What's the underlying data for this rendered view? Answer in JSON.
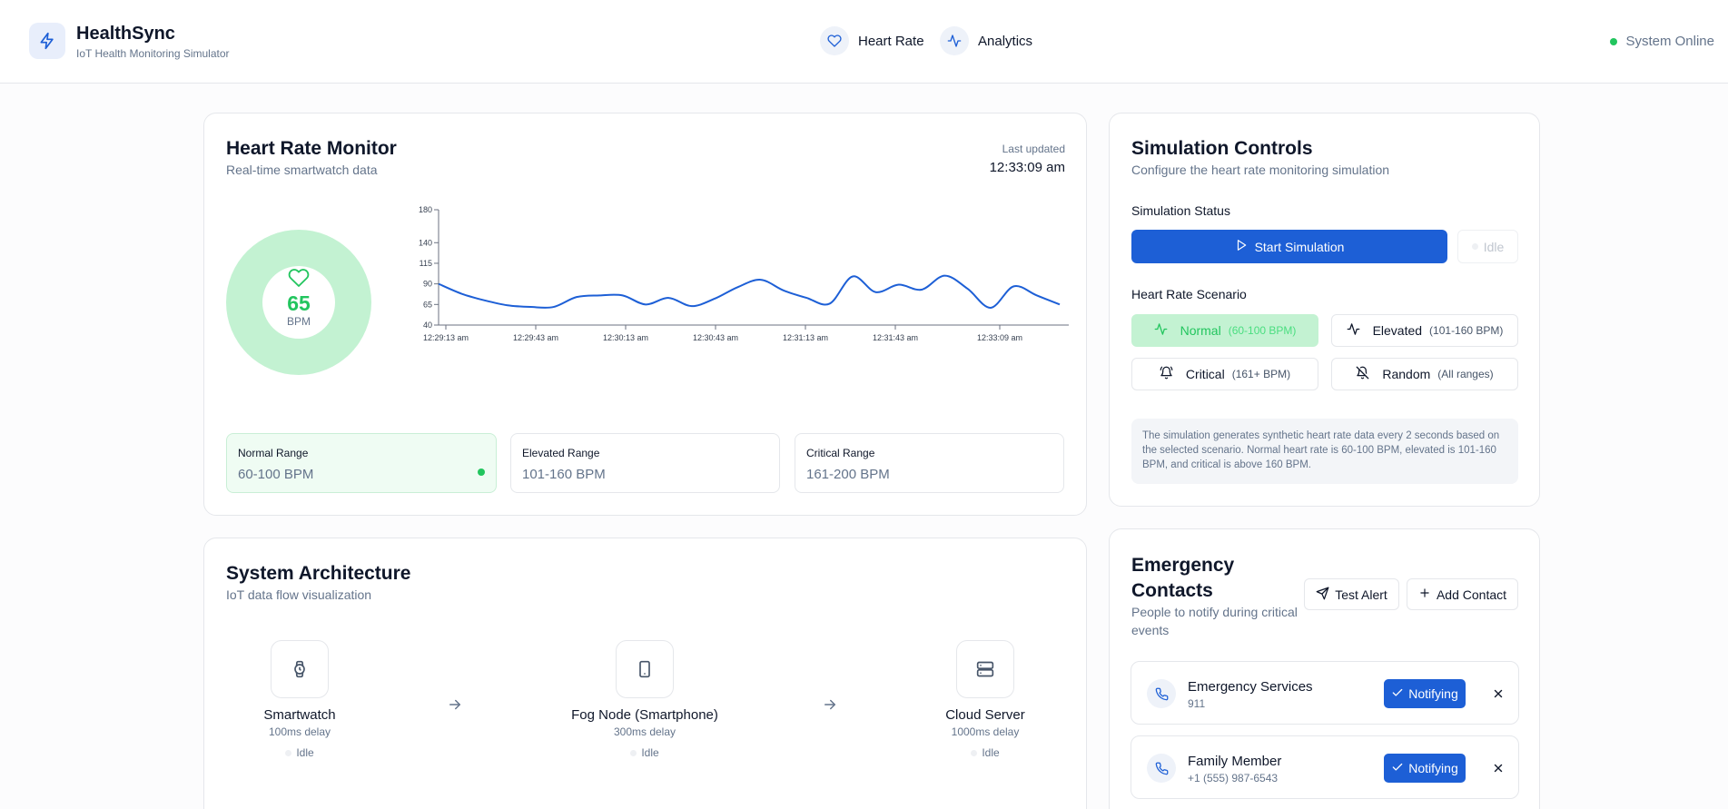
{
  "header": {
    "app_name": "HealthSync",
    "app_subtitle": "IoT Health Monitoring Simulator",
    "nav": [
      {
        "label": "Heart Rate",
        "icon": "heart-icon"
      },
      {
        "label": "Analytics",
        "icon": "activity-icon"
      }
    ],
    "status": "System Online",
    "status_color": "#22c55e"
  },
  "monitor": {
    "title": "Heart Rate Monitor",
    "subtitle": "Real-time smartwatch data",
    "last_updated_label": "Last updated",
    "last_updated_value": "12:33:09 am",
    "bpm_value": "65",
    "bpm_unit": "BPM",
    "gauge_color": "#c3f2d2",
    "value_color": "#22c55e",
    "ranges": [
      {
        "label": "Normal Range",
        "value": "60-100 BPM",
        "active": true
      },
      {
        "label": "Elevated Range",
        "value": "101-160 BPM",
        "active": false
      },
      {
        "label": "Critical Range",
        "value": "161-200 BPM",
        "active": false
      }
    ]
  },
  "chart_data": {
    "type": "line",
    "y_ticks": [
      40,
      65,
      90,
      115,
      140,
      180
    ],
    "ylim": [
      40,
      180
    ],
    "x_tick_labels": [
      "12:29:13 am",
      "12:29:43 am",
      "12:30:13 am",
      "12:30:43 am",
      "12:31:13 am",
      "12:31:43 am",
      "12:33:09 am"
    ],
    "series": [
      {
        "color": "#1d5fd6",
        "values": [
          90,
          78,
          70,
          64,
          62,
          62,
          74,
          76,
          76,
          65,
          73,
          63,
          72,
          86,
          95,
          82,
          73,
          66,
          99,
          80,
          89,
          83,
          100,
          84,
          61,
          87,
          76,
          65
        ]
      }
    ]
  },
  "controls": {
    "title": "Simulation Controls",
    "subtitle": "Configure the heart rate monitoring simulation",
    "status_label": "Simulation Status",
    "start_label": "Start Simulation",
    "idle_label": "Idle",
    "scenario_label": "Heart Rate Scenario",
    "scenarios": [
      {
        "name": "Normal",
        "range": "(60-100 BPM)",
        "icon": "activity-icon",
        "selected": true
      },
      {
        "name": "Elevated",
        "range": "(101-160 BPM)",
        "icon": "activity-icon",
        "selected": false
      },
      {
        "name": "Critical",
        "range": "(161+ BPM)",
        "icon": "bell-ring-icon",
        "selected": false
      },
      {
        "name": "Random",
        "range": "(All ranges)",
        "icon": "bell-off-icon",
        "selected": false
      }
    ],
    "info": "The simulation generates synthetic heart rate data every 2 seconds based on the selected scenario. Normal heart rate is 60-100 BPM, elevated is 101-160 BPM, and critical is above 160 BPM."
  },
  "architecture": {
    "title": "System Architecture",
    "subtitle": "IoT data flow visualization",
    "nodes": [
      {
        "name": "Smartwatch",
        "delay": "100ms delay",
        "state": "Idle",
        "icon": "watch-icon"
      },
      {
        "name": "Fog Node (Smartphone)",
        "delay": "300ms delay",
        "state": "Idle",
        "icon": "smartphone-icon"
      },
      {
        "name": "Cloud Server",
        "delay": "1000ms delay",
        "state": "Idle",
        "icon": "server-icon"
      }
    ]
  },
  "emergency": {
    "title_line1": "Emergency",
    "title_line2": "Contacts",
    "subtitle_line1": "People to notify during critical",
    "subtitle_line2": "events",
    "test_alert_label": "Test Alert",
    "add_contact_label": "Add Contact",
    "contacts": [
      {
        "name": "Emergency Services",
        "phone": "911",
        "status": "Notifying"
      },
      {
        "name": "Family Member",
        "phone": "+1 (555) 987-6543",
        "status": "Notifying"
      }
    ]
  }
}
